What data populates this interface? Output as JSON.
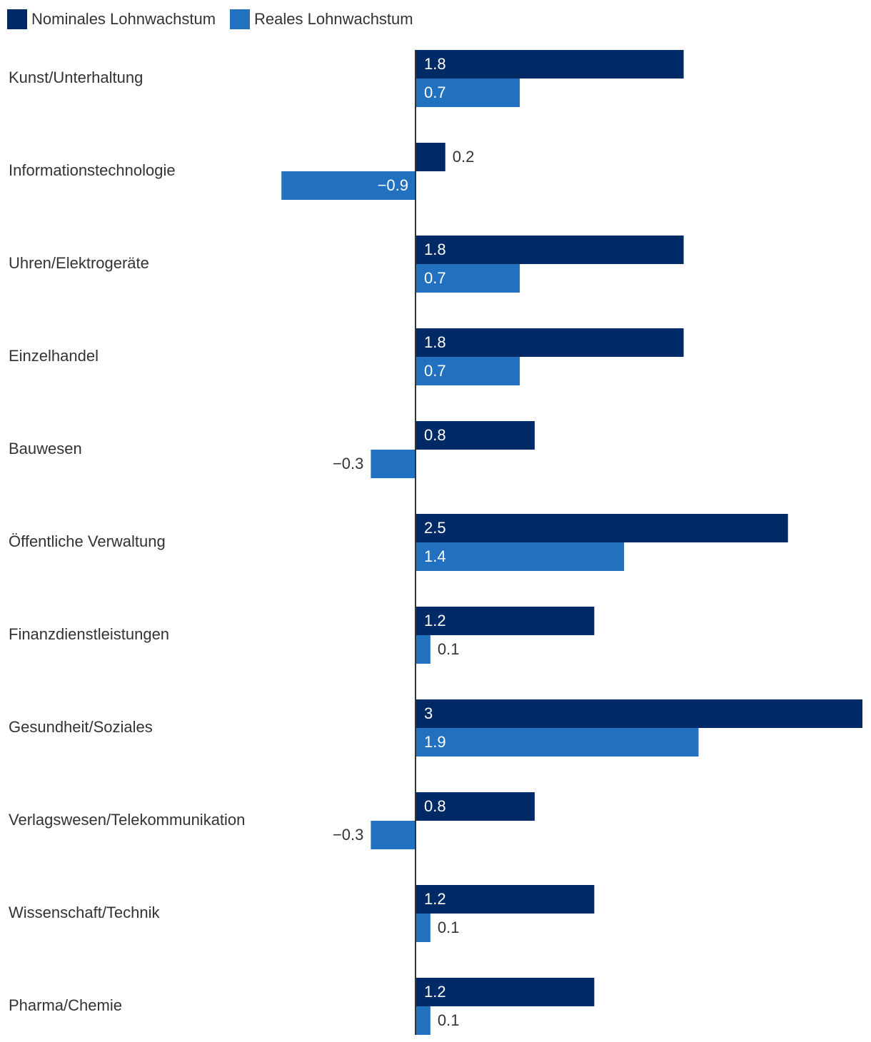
{
  "chart_data": {
    "type": "bar",
    "orientation": "horizontal",
    "categories": [
      "Kunst/Unterhaltung",
      "Informationstechnologie",
      "Uhren/Elektrogeräte",
      "Einzelhandel",
      "Bauwesen",
      "Öffentliche Verwaltung",
      "Finanzdienstleistungen",
      "Gesundheit/Soziales",
      "Verlagswesen/Telekommunikation",
      "Wissenschaft/Technik",
      "Pharma/Chemie"
    ],
    "series": [
      {
        "name": "Nominales Lohnwachstum",
        "color": "#002a66",
        "values": [
          1.8,
          0.2,
          1.8,
          1.8,
          0.8,
          2.5,
          1.2,
          3,
          0.8,
          1.2,
          1.2
        ],
        "labels": [
          "1.8",
          "0.2",
          "1.8",
          "1.8",
          "0.8",
          "2.5",
          "1.2",
          "3",
          "0.8",
          "1.2",
          "1.2"
        ]
      },
      {
        "name": "Reales Lohnwachstum",
        "color": "#2171c0",
        "values": [
          0.7,
          -0.9,
          0.7,
          0.7,
          -0.3,
          1.4,
          0.1,
          1.9,
          -0.3,
          0.1,
          0.1
        ],
        "labels": [
          "0.7",
          "−0.9",
          "0.7",
          "0.7",
          "−0.3",
          "1.4",
          "0.1",
          "1.9",
          "−0.3",
          "0.1",
          "0.1"
        ]
      }
    ],
    "xlim": [
      -2.75,
      3
    ],
    "title": "",
    "xlabel": "",
    "ylabel": "",
    "grid": false,
    "legend_position": "top-left",
    "label_color_dark": "#333333",
    "label_color_light": "#ffffff"
  }
}
